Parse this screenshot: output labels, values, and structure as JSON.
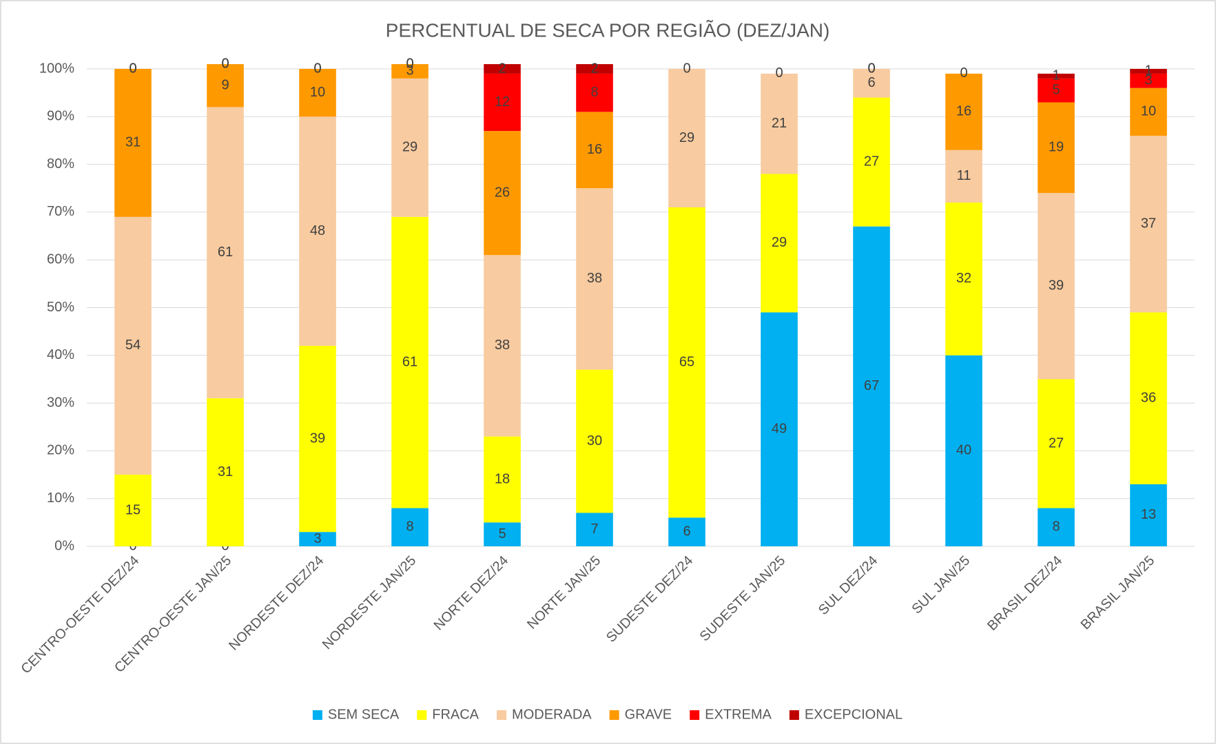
{
  "chart_data": {
    "type": "stacked_bar",
    "title": "PERCENTUAL DE SECA POR REGIÃO (DEZ/JAN)",
    "categories": [
      "CENTRO-OESTE DEZ/24",
      "CENTRO-OESTE JAN/25",
      "NORDESTE DEZ/24",
      "NORDESTE JAN/25",
      "NORTE DEZ/24",
      "NORTE JAN/25",
      "SUDESTE DEZ/24",
      "SUDESTE JAN/25",
      "SUL DEZ/24",
      "SUL JAN/25",
      "BRASIL DEZ/24",
      "BRASIL JAN/25"
    ],
    "series": [
      {
        "name": "SEM SECA",
        "color": "#00b0f0",
        "values": [
          0,
          0,
          3,
          8,
          5,
          7,
          6,
          49,
          67,
          40,
          8,
          13
        ]
      },
      {
        "name": "FRACA",
        "color": "#ffff00",
        "values": [
          15,
          31,
          39,
          61,
          18,
          30,
          65,
          29,
          27,
          32,
          27,
          36
        ]
      },
      {
        "name": "MODERADA",
        "color": "#f8cba0",
        "values": [
          54,
          61,
          48,
          29,
          38,
          38,
          29,
          21,
          6,
          11,
          39,
          37
        ]
      },
      {
        "name": "GRAVE",
        "color": "#ff9900",
        "values": [
          31,
          9,
          10,
          3,
          26,
          16,
          0,
          0,
          0,
          16,
          19,
          10
        ]
      },
      {
        "name": "EXTREMA",
        "color": "#ff0000",
        "values": [
          0,
          0,
          0,
          0,
          12,
          8,
          null,
          null,
          0,
          0,
          5,
          3
        ]
      },
      {
        "name": "EXCEPCIONAL",
        "color": "#c00000",
        "values": [
          0,
          0,
          0,
          0,
          2,
          2,
          null,
          null,
          null,
          null,
          1,
          1
        ]
      }
    ],
    "ylim": [
      0,
      100
    ],
    "yticks": [
      {
        "value": 0,
        "label": "0%"
      },
      {
        "value": 10,
        "label": "10%"
      },
      {
        "value": 20,
        "label": "20%"
      },
      {
        "value": 30,
        "label": "30%"
      },
      {
        "value": 40,
        "label": "40%"
      },
      {
        "value": 50,
        "label": "50%"
      },
      {
        "value": 60,
        "label": "60%"
      },
      {
        "value": 70,
        "label": "70%"
      },
      {
        "value": 80,
        "label": "80%"
      },
      {
        "value": 90,
        "label": "90%"
      },
      {
        "value": 100,
        "label": "100%"
      }
    ],
    "grid": true,
    "legend": "bottom"
  }
}
